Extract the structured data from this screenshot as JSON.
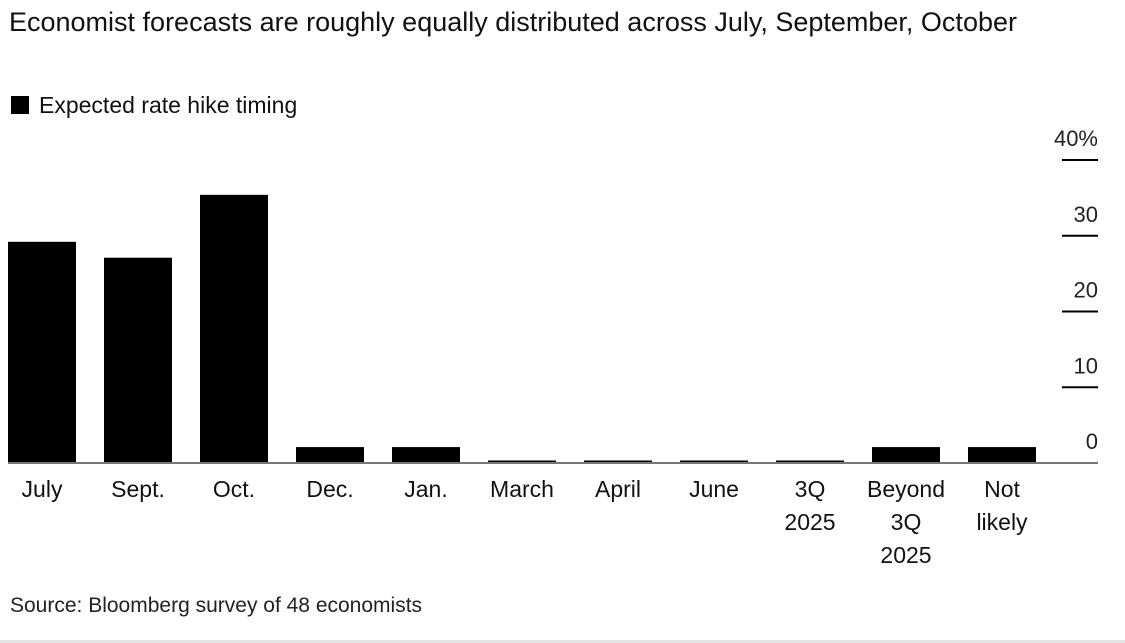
{
  "title": "Economist forecasts are roughly equally distributed across July, September, October",
  "legend": {
    "label": "Expected rate hike timing",
    "color": "#000000"
  },
  "source": "Source: Bloomberg survey of 48 economists",
  "chart_data": {
    "type": "bar",
    "categories": [
      [
        "July"
      ],
      [
        "Sept."
      ],
      [
        "Oct."
      ],
      [
        "Dec."
      ],
      [
        "Jan."
      ],
      [
        "March"
      ],
      [
        "April"
      ],
      [
        "June"
      ],
      [
        "3Q",
        "2025"
      ],
      [
        "Beyond",
        "3Q",
        "2025"
      ],
      [
        "Not",
        "likely"
      ]
    ],
    "series": [
      {
        "name": "Expected rate hike timing",
        "values": [
          29.2,
          27.1,
          35.4,
          2.1,
          2.1,
          0,
          0,
          0,
          0,
          2.1,
          2.1
        ],
        "color": "#000000"
      }
    ],
    "ylim": [
      0,
      40
    ],
    "yticks": [
      0,
      10,
      20,
      30,
      40
    ],
    "ytick_labels": [
      "0",
      "10",
      "20",
      "30",
      "40%"
    ],
    "y_axis_position": "right",
    "grid": false
  }
}
